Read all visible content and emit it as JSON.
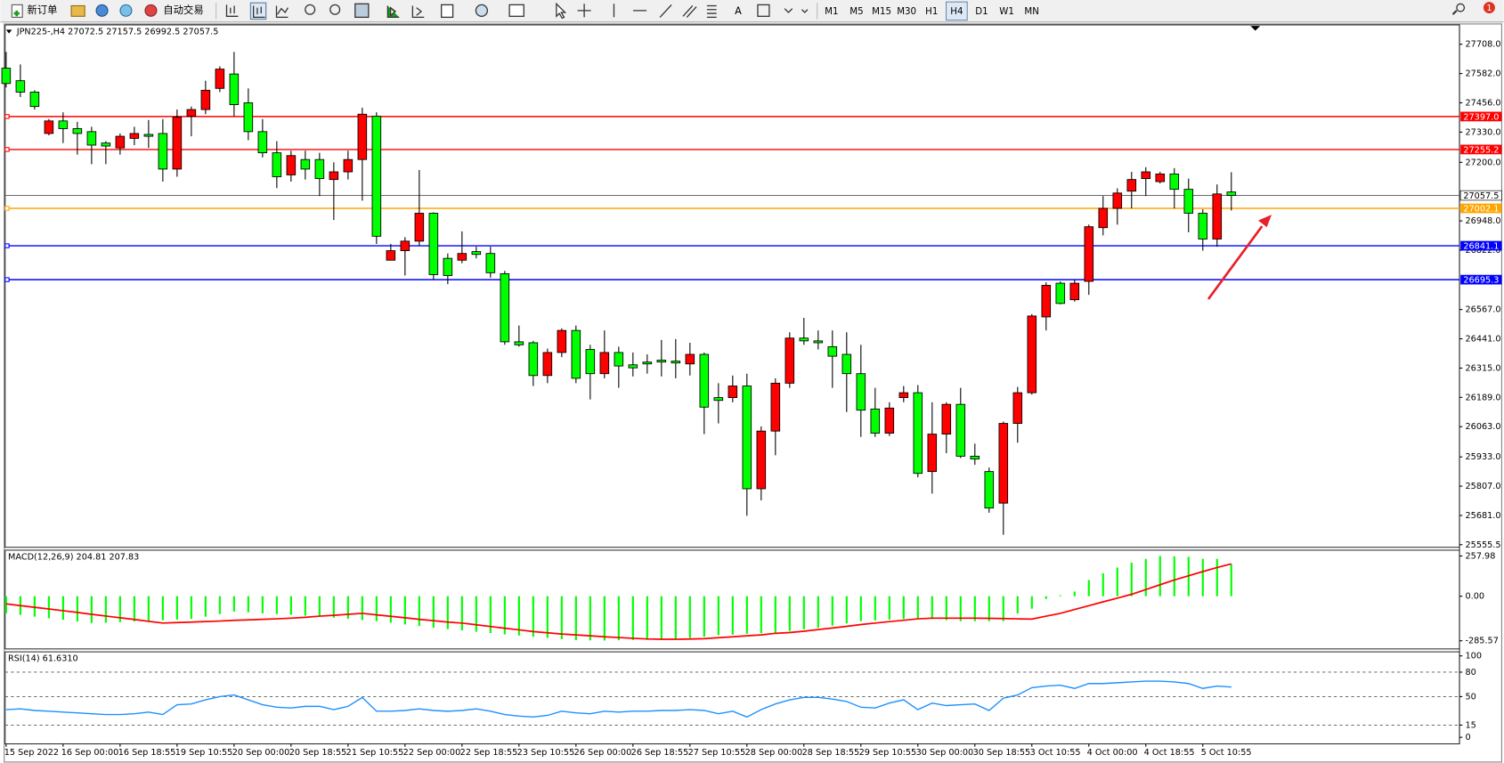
{
  "toolbar": {
    "buttons": [
      "新订单",
      "自动交易"
    ],
    "timeframes": [
      "M1",
      "M5",
      "M15",
      "M30",
      "H1",
      "H4",
      "D1",
      "W1",
      "MN"
    ],
    "active": "H4",
    "badge": "1"
  },
  "chart_data": [
    {
      "type": "candlestick",
      "title": "JPN225-,H4  27072.5 27157.5 26992.5 27057.5",
      "categories": [
        "15 Sep 2022",
        null,
        null,
        null,
        "16 Sep 00:00",
        null,
        null,
        null,
        "16 Sep 18:55",
        null,
        null,
        null,
        "19 Sep 10:55",
        null,
        null,
        null,
        "20 Sep 00:00",
        null,
        null,
        null,
        "20 Sep 18:55",
        null,
        null,
        null,
        "21 Sep 10:55",
        null,
        null,
        null,
        "22 Sep 00:00",
        null,
        null,
        null,
        "22 Sep 18:55",
        null,
        null,
        null,
        "23 Sep 10:55",
        null,
        null,
        null,
        "26 Sep 00:00",
        null,
        null,
        null,
        "26 Sep 18:55",
        null,
        null,
        null,
        "27 Sep 10:55",
        null,
        null,
        null,
        "28 Sep 00:00",
        null,
        null,
        null,
        "28 Sep 18:55",
        null,
        null,
        null,
        "29 Sep 10:55",
        null,
        null,
        null,
        "30 Sep 00:00",
        null,
        null,
        null,
        "30 Sep 18:55",
        null,
        null,
        null,
        "3 Oct 10:55",
        null,
        null,
        null,
        "4 Oct 00:00",
        null,
        null,
        null,
        "4 Oct 18:55",
        null,
        null,
        null,
        "5 Oct 10:55",
        null,
        null
      ],
      "open": [
        27605,
        27551,
        27502,
        27324,
        27378,
        27345,
        27332,
        27283,
        27262,
        27303,
        27320,
        27324,
        27171,
        27398,
        27427,
        27518,
        27580,
        27456,
        27332,
        27241,
        27146,
        27212,
        27212,
        27126,
        27159,
        27212,
        27398,
        26779,
        26820,
        26861,
        26981,
        26787,
        26779,
        26816,
        26808,
        26721,
        26428,
        26424,
        26283,
        26382,
        26477,
        26395,
        26291,
        26382,
        26329,
        26341,
        26349,
        26345,
        26333,
        26374,
        26188,
        26188,
        26238,
        25796,
        26044,
        26250,
        26444,
        26432,
        26407,
        26374,
        26291,
        26139,
        26035,
        26188,
        26209,
        25870,
        26031,
        26159,
        25936,
        25870,
        25734,
        26077,
        26209,
        26535,
        26680,
        26609,
        26688,
        26919,
        27002,
        27076,
        27130,
        27117,
        27150,
        27084,
        26981,
        26870,
        27072.5
      ],
      "high": [
        27675,
        27621,
        27510,
        27386,
        27415,
        27374,
        27353,
        27291,
        27324,
        27353,
        27382,
        27386,
        27427,
        27440,
        27551,
        27613,
        27675,
        27518,
        27386,
        27291,
        27250,
        27250,
        27241,
        27200,
        27250,
        27435,
        27415,
        26849,
        26878,
        27167,
        26985,
        26808,
        26903,
        26837,
        26837,
        26733,
        26498,
        26432,
        26399,
        26486,
        26498,
        26415,
        26477,
        26407,
        26382,
        26374,
        26436,
        26440,
        26424,
        26382,
        26250,
        26283,
        26291,
        26064,
        26271,
        26469,
        26531,
        26477,
        26477,
        26469,
        26415,
        26230,
        26168,
        26238,
        26242,
        26168,
        26168,
        26230,
        25990,
        25887,
        26085,
        26234,
        26547,
        26684,
        26688,
        26696,
        26932,
        27055,
        27088,
        27159,
        27179,
        27159,
        27175,
        27130,
        26998,
        27105,
        27157.5
      ],
      "low": [
        27522,
        27481,
        27427,
        27316,
        27283,
        27233,
        27192,
        27192,
        27233,
        27274,
        27262,
        27117,
        27138,
        27312,
        27407,
        27502,
        27398,
        27295,
        27221,
        27089,
        27117,
        27126,
        27055,
        26952,
        27126,
        27035,
        26849,
        26779,
        26713,
        26841,
        26696,
        26676,
        26766,
        26787,
        26704,
        26415,
        26407,
        26238,
        26250,
        26362,
        26250,
        26180,
        26271,
        26230,
        26279,
        26291,
        26279,
        26271,
        26283,
        26031,
        26077,
        26168,
        25680,
        25746,
        25940,
        26230,
        26415,
        26395,
        26230,
        26126,
        26019,
        26019,
        26023,
        26168,
        25845,
        25775,
        25949,
        25928,
        25899,
        25693,
        25598,
        25994,
        26201,
        26477,
        26589,
        26601,
        26630,
        26886,
        26932,
        27002,
        27055,
        27109,
        27002,
        26899,
        26820,
        26837,
        26992.5
      ],
      "close": [
        27539,
        27502,
        27440,
        27378,
        27345,
        27324,
        27274,
        27270,
        27312,
        27324,
        27312,
        27171,
        27394,
        27427,
        27510,
        27601,
        27448,
        27332,
        27241,
        27138,
        27229,
        27171,
        27130,
        27159,
        27212,
        27407,
        26882,
        26820,
        26861,
        26981,
        26717,
        26713,
        26808,
        26804,
        26725,
        26428,
        26415,
        26283,
        26382,
        26477,
        26271,
        26291,
        26382,
        26324,
        26316,
        26333,
        26341,
        26337,
        26374,
        26147,
        26176,
        26238,
        25796,
        26044,
        26250,
        26444,
        26432,
        26424,
        26366,
        26291,
        26134,
        26035,
        26143,
        26209,
        25862,
        26031,
        26159,
        25936,
        25924,
        25713,
        26077,
        26209,
        26539,
        26671,
        26593,
        26680,
        26923,
        27002,
        27068,
        27126,
        27159,
        27150,
        27084,
        26981,
        26870,
        27064,
        27057.5
      ],
      "colors": {
        "up": "#ff0000",
        "down": "#00ff00"
      },
      "ylim": [
        25544,
        27791
      ],
      "yticks": [
        {
          "value": 27708,
          "label": "27708.0"
        },
        {
          "value": 27582,
          "label": "27582.0"
        },
        {
          "value": 27456,
          "label": "27456.0"
        },
        {
          "value": 27330,
          "label": "27330.0"
        },
        {
          "value": 27200,
          "label": "27200.0"
        },
        {
          "value": 26948,
          "label": "26948.0"
        },
        {
          "value": 26822,
          "label": "26822.0"
        },
        {
          "value": 26567,
          "label": "26567.0"
        },
        {
          "value": 26441,
          "label": "26441.0"
        },
        {
          "value": 26315,
          "label": "26315.0"
        },
        {
          "value": 26189,
          "label": "26189.0"
        },
        {
          "value": 26063,
          "label": "26063.0"
        },
        {
          "value": 25933,
          "label": "25933.0"
        },
        {
          "value": 25807,
          "label": "25807.0"
        },
        {
          "value": 25681,
          "label": "25681.0"
        },
        25555.5
      ],
      "levels": [
        {
          "value": 27397,
          "label": "27397.0",
          "color": "#ff0000"
        },
        {
          "value": 27255.2,
          "color": "#ff0000"
        },
        {
          "value": 27002.1,
          "color": "#ffa500"
        },
        {
          "value": 26841.1,
          "color": "#0000ff"
        },
        {
          "value": 26695.3,
          "color": "#0000ff"
        }
      ],
      "current": 27057.5
    },
    {
      "type": "macd",
      "title": "MACD(12,26,9) 204.81 207.83",
      "values": [
        -110,
        -120,
        -131,
        -141,
        -151,
        -162,
        -172,
        -170,
        -166,
        -162,
        -158,
        -154,
        -150,
        -145,
        -131,
        -114,
        -98,
        -103,
        -109,
        -114,
        -119,
        -125,
        -130,
        -138,
        -145,
        -153,
        -160,
        -170,
        -181,
        -191,
        -202,
        -211,
        -219,
        -228,
        -236,
        -245,
        -252,
        -260,
        -267,
        -275,
        -282,
        -283,
        -284,
        -282,
        -281,
        -280,
        -278,
        -275,
        -268,
        -260,
        -250,
        -246,
        -241,
        -237,
        -233,
        -223,
        -212,
        -202,
        -188,
        -174,
        -160,
        -155,
        -150,
        -146,
        -141,
        -147,
        -154,
        -160,
        -160,
        -160,
        -160,
        -110,
        -80,
        -18,
        6,
        30,
        104,
        147,
        184,
        215,
        239,
        257.98,
        255,
        252,
        240,
        240,
        204.81
      ],
      "color": "#00ff00",
      "signal": [
        -49,
        -60,
        -71,
        -82,
        -93,
        -104,
        -116,
        -127,
        -138,
        -149,
        -161,
        -172,
        -169,
        -166,
        -162,
        -159,
        -155,
        -152,
        -148,
        -145,
        -141,
        -135,
        -128,
        -122,
        -116,
        -110,
        -120,
        -129,
        -138,
        -148,
        -157,
        -166,
        -172,
        -183,
        -194,
        -205,
        -216,
        -227,
        -235,
        -242,
        -248,
        -254,
        -260,
        -265,
        -270,
        -274,
        -276,
        -276,
        -275,
        -272,
        -266,
        -260,
        -254,
        -248,
        -238,
        -233,
        -224,
        -214,
        -204,
        -193,
        -182,
        -172,
        -163,
        -154,
        -145,
        -141,
        -141,
        -141,
        -141,
        -142,
        -143,
        -145,
        -147,
        -128,
        -110,
        -85,
        -61,
        -36,
        -12,
        12,
        43,
        74,
        104,
        131,
        158,
        184,
        207.83
      ],
      "signal_color": "#ff0000",
      "ylim": [
        -338,
        295
      ],
      "yticks": [
        257.98,
        {
          "value": 0,
          "label": "0.00"
        },
        -285.57
      ]
    },
    {
      "type": "line",
      "title": "RSI(14) 61.6310",
      "values": [
        34,
        35,
        33,
        32,
        31,
        30,
        29,
        28,
        28,
        29,
        31,
        28,
        40,
        41,
        46,
        50,
        52,
        46,
        40,
        37,
        36,
        38,
        38,
        34,
        38,
        49,
        32,
        32,
        33,
        35,
        33,
        32,
        33,
        35,
        32,
        28,
        26,
        25,
        27,
        32,
        30,
        29,
        32,
        31,
        32,
        32,
        33,
        33,
        34,
        33,
        29,
        32,
        25,
        34,
        41,
        46,
        49,
        49,
        47,
        44,
        37,
        36,
        42,
        46,
        34,
        42,
        39,
        40,
        41,
        33,
        48,
        52,
        61,
        63,
        64,
        60,
        66,
        66,
        67,
        68,
        69,
        69,
        68,
        66,
        60,
        63,
        61.631
      ],
      "color": "#1e90ff",
      "ylim": [
        -8,
        105
      ],
      "yticks": [
        100,
        80,
        50,
        15,
        0
      ],
      "levels": [
        80,
        50,
        15
      ]
    }
  ]
}
